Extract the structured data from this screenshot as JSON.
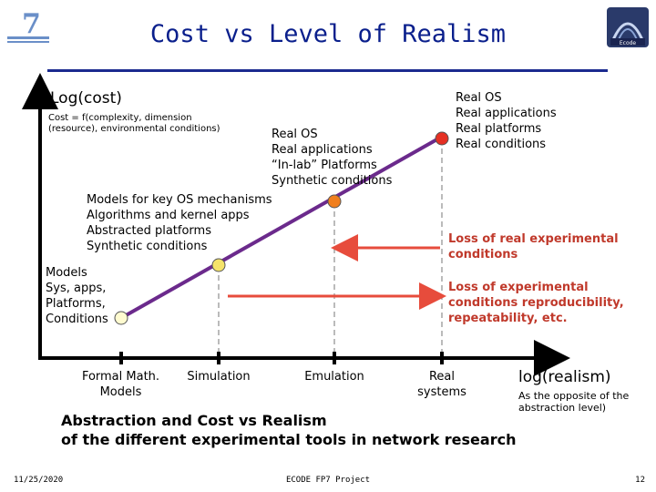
{
  "title": "Cost vs Level of Realism",
  "y_axis_label": "Log(cost)",
  "cost_note": [
    "Cost = f(complexity, dimension",
    "(resource), environmental conditions)"
  ],
  "x_axis_label": "log(realism)",
  "x_axis_note": [
    "As the opposite of the",
    "abstraction level)"
  ],
  "x_ticks": [
    {
      "label": [
        "Formal Math.",
        "Models"
      ]
    },
    {
      "label": [
        "Simulation"
      ]
    },
    {
      "label": [
        "Emulation"
      ]
    },
    {
      "label": [
        "Real",
        "systems"
      ]
    }
  ],
  "point_labels": {
    "models": [
      "Models",
      "Sys, apps,",
      "Platforms,",
      "Conditions"
    ],
    "key_os": [
      "Models for key OS mechanisms",
      "Algorithms and kernel apps",
      "Abstracted platforms",
      "Synthetic conditions"
    ],
    "in_lab": [
      "Real OS",
      "Real applications",
      "“In-lab” Platforms",
      "Synthetic conditions"
    ],
    "real": [
      "Real OS",
      "Real applications",
      "Real platforms",
      "Real conditions"
    ]
  },
  "annotations": {
    "loss_real": [
      "Loss of real experimental",
      "conditions"
    ],
    "loss_repro": [
      "Loss of experimental",
      "conditions reproducibility,",
      "repeatability, etc."
    ]
  },
  "caption": [
    "Abstraction and Cost vs Realism",
    "of the different experimental tools in network research"
  ],
  "footer": {
    "date": "11/25/2020",
    "center": "ECODE FP7 Project",
    "page": "12"
  },
  "colors": {
    "title": "#0a1f8c",
    "line": "#6b2a8c",
    "arrow": "#e74c3c",
    "point_yellow": "#f5e36a",
    "point_orange": "#f07f1e",
    "point_red": "#e53023",
    "point_pale": "#fffbd0"
  }
}
